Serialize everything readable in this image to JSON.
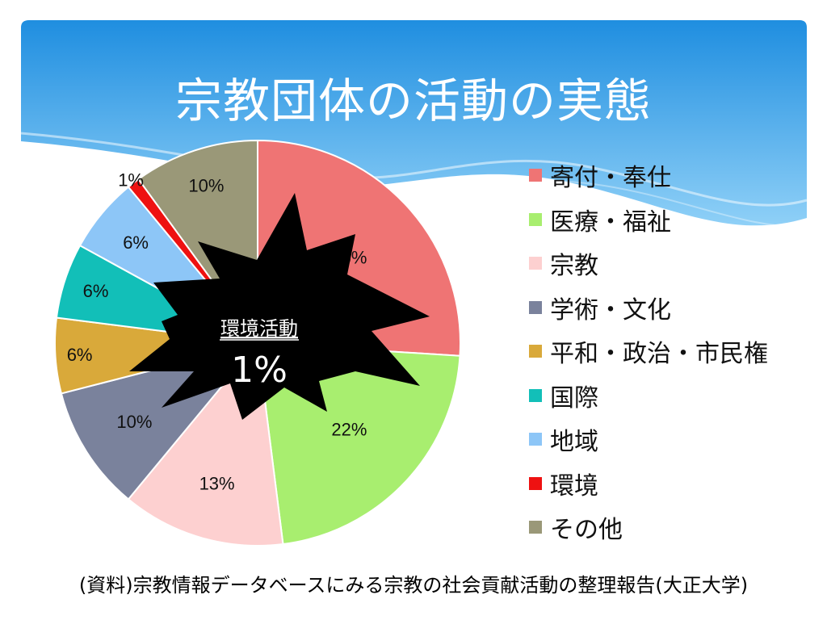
{
  "slide": {
    "title": "宗教団体の活動の実態",
    "source": "(資料)宗教情報データベースにみる宗教の社会貢献活動の整理報告(大正大学)"
  },
  "callout": {
    "label": "環境活動",
    "value": "1%"
  },
  "colors": {
    "banner_top": "#1f8ee0",
    "banner_bottom": "#8fd0f7",
    "callout_fill": "#000000"
  },
  "chart_data": {
    "type": "pie",
    "title": "",
    "legend_position": "right",
    "slices": [
      {
        "name": "寄付・奉仕",
        "value": 26,
        "label": "26%",
        "color": "#ef7474"
      },
      {
        "name": "医療・福祉",
        "value": 22,
        "label": "22%",
        "color": "#a8ee6f"
      },
      {
        "name": "宗教",
        "value": 13,
        "label": "13%",
        "color": "#fdd0d0"
      },
      {
        "name": "学術・文化",
        "value": 10,
        "label": "10%",
        "color": "#7a829c"
      },
      {
        "name": "平和・政治・市民権",
        "value": 6,
        "label": "6%",
        "color": "#d9a93a"
      },
      {
        "name": "国際",
        "value": 6,
        "label": "6%",
        "color": "#12bfb8"
      },
      {
        "name": "地域",
        "value": 6,
        "label": "6%",
        "color": "#8dc6f7"
      },
      {
        "name": "環境",
        "value": 1,
        "label": "1%",
        "color": "#ee1111"
      },
      {
        "name": "その他",
        "value": 10,
        "label": "10%",
        "color": "#9a9878"
      }
    ]
  }
}
